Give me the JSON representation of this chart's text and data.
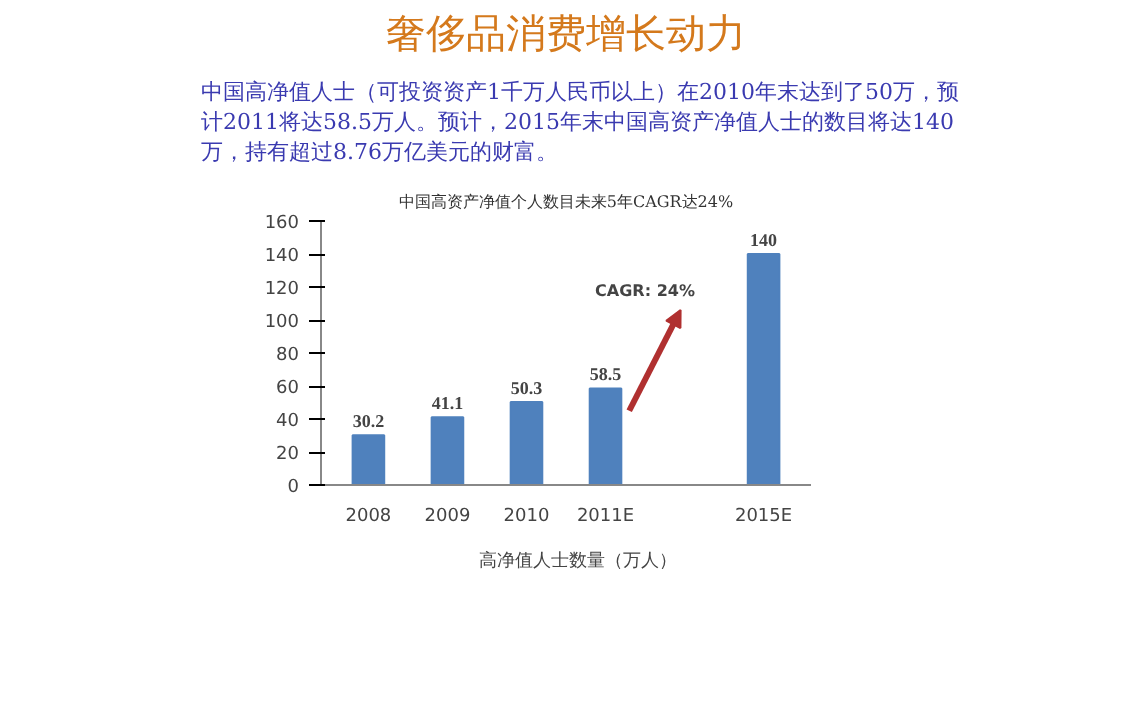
{
  "chart_data": {
    "type": "bar",
    "title": "奢侈品消费增长动力",
    "subtitle": "中国高资产净值个人数目未来5年CAGR达24%",
    "annotations": [
      "中国高净值人士（可投资资产1千万人民币以上）在2010年末达到了50万，预计2011将达58.5万人。预计，2015年末中国高资产净值人士的数目将达140万，持有超过8.76万亿美元的财富。",
      "CAGR: 24%"
    ],
    "categories": [
      "2008",
      "2009",
      "2010",
      "2011E",
      null,
      "2015E"
    ],
    "series": [
      {
        "name": "高净值人士数量（万人）",
        "color": "#4f81bd",
        "values": [
          30.2,
          41.1,
          50.3,
          58.5,
          null,
          140
        ]
      }
    ],
    "ylim": [
      0,
      160
    ],
    "yticks": [
      0,
      20,
      40,
      60,
      80,
      100,
      120,
      140,
      160
    ],
    "grid": false,
    "legend": "bottom",
    "data_labels": true
  }
}
